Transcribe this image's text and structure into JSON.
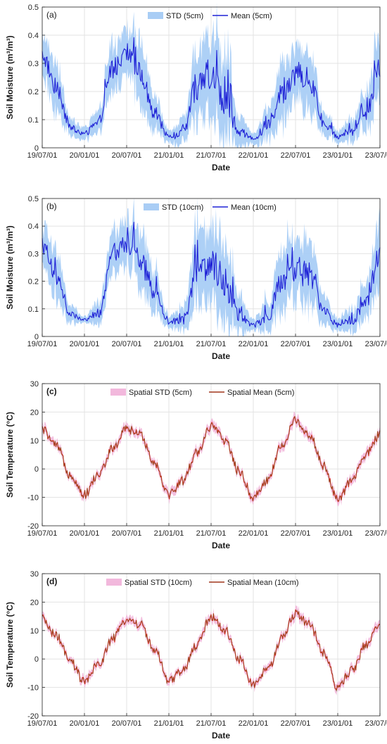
{
  "chart_data": [
    {
      "type": "area",
      "panel_label": "(a)",
      "xlabel": "Date",
      "ylabel": "Soil Moisture (m³/m³)",
      "x_ticks": [
        "19/07/01",
        "20/01/01",
        "20/07/01",
        "21/01/01",
        "21/07/01",
        "22/01/01",
        "22/07/01",
        "23/01/01",
        "23/07/01"
      ],
      "y_ticks": [
        "0",
        "0.1",
        "0.2",
        "0.3",
        "0.4",
        "0.5"
      ],
      "ylim": [
        0,
        0.5
      ],
      "grid": true,
      "legend_position": "top",
      "colors": {
        "band": "#a9cdf5",
        "line": "#1f22d6"
      },
      "series": [
        {
          "name": "STD (5cm)",
          "kind": "band"
        },
        {
          "name": "Mean (5cm)",
          "kind": "line"
        }
      ],
      "x": [
        "19/07/01",
        "19/09/01",
        "19/11/01",
        "20/01/01",
        "20/03/01",
        "20/05/01",
        "20/07/01",
        "20/09/01",
        "20/11/01",
        "21/01/01",
        "21/03/01",
        "21/05/01",
        "21/07/01",
        "21/09/01",
        "21/11/01",
        "22/01/01",
        "22/03/01",
        "22/05/01",
        "22/07/01",
        "22/09/01",
        "22/11/01",
        "23/01/01",
        "23/03/01",
        "23/05/01",
        "23/07/01"
      ],
      "mean": [
        0.33,
        0.22,
        0.07,
        0.05,
        0.09,
        0.28,
        0.34,
        0.26,
        0.12,
        0.04,
        0.05,
        0.22,
        0.27,
        0.18,
        0.06,
        0.03,
        0.08,
        0.2,
        0.26,
        0.24,
        0.09,
        0.04,
        0.06,
        0.12,
        0.3
      ],
      "std": [
        0.07,
        0.08,
        0.03,
        0.02,
        0.04,
        0.08,
        0.08,
        0.1,
        0.06,
        0.02,
        0.04,
        0.12,
        0.13,
        0.14,
        0.05,
        0.02,
        0.05,
        0.1,
        0.09,
        0.1,
        0.04,
        0.02,
        0.04,
        0.06,
        0.12
      ]
    },
    {
      "type": "area",
      "panel_label": "(b)",
      "xlabel": "Date",
      "ylabel": "Soil Moisture (m³/m³)",
      "x_ticks": [
        "19/07/01",
        "20/01/01",
        "20/07/01",
        "21/01/01",
        "21/07/01",
        "22/01/01",
        "22/07/01",
        "23/01/01",
        "23/07/01"
      ],
      "y_ticks": [
        "0",
        "0.1",
        "0.2",
        "0.3",
        "0.4",
        "0.5"
      ],
      "ylim": [
        0,
        0.5
      ],
      "grid": true,
      "legend_position": "top",
      "colors": {
        "band": "#a9cdf5",
        "line": "#1f22d6"
      },
      "series": [
        {
          "name": "STD (10cm)",
          "kind": "band"
        },
        {
          "name": "Mean (10cm)",
          "kind": "line"
        }
      ],
      "x": [
        "19/07/01",
        "19/09/01",
        "19/11/01",
        "20/01/01",
        "20/03/01",
        "20/05/01",
        "20/07/01",
        "20/09/01",
        "20/11/01",
        "21/01/01",
        "21/03/01",
        "21/05/01",
        "21/07/01",
        "21/09/01",
        "21/11/01",
        "22/01/01",
        "22/03/01",
        "22/05/01",
        "22/07/01",
        "22/09/01",
        "22/11/01",
        "23/01/01",
        "23/03/01",
        "23/05/01",
        "23/07/01"
      ],
      "mean": [
        0.33,
        0.22,
        0.08,
        0.06,
        0.08,
        0.29,
        0.34,
        0.27,
        0.16,
        0.05,
        0.06,
        0.23,
        0.27,
        0.19,
        0.08,
        0.04,
        0.07,
        0.19,
        0.24,
        0.22,
        0.1,
        0.04,
        0.06,
        0.12,
        0.29
      ],
      "std": [
        0.07,
        0.08,
        0.03,
        0.01,
        0.04,
        0.07,
        0.08,
        0.1,
        0.07,
        0.02,
        0.04,
        0.12,
        0.13,
        0.14,
        0.06,
        0.02,
        0.05,
        0.1,
        0.1,
        0.11,
        0.05,
        0.02,
        0.04,
        0.06,
        0.12
      ]
    },
    {
      "type": "area",
      "panel_label": "(c)",
      "xlabel": "Date",
      "ylabel": "Soil Temperature (°C)",
      "x_ticks": [
        "19/07/01",
        "20/01/01",
        "20/07/01",
        "21/01/01",
        "21/07/01",
        "22/01/01",
        "22/07/01",
        "23/01/01",
        "23/07/01"
      ],
      "y_ticks": [
        "-20",
        "-10",
        "0",
        "10",
        "20",
        "30"
      ],
      "ylim": [
        -20,
        30
      ],
      "grid": true,
      "legend_position": "top",
      "colors": {
        "band": "#f2b8dc",
        "line": "#d72a1e"
      },
      "series": [
        {
          "name": "Spatial STD (5cm)",
          "kind": "band"
        },
        {
          "name": "Spatial Mean (5cm)",
          "kind": "line"
        }
      ],
      "x": [
        "19/07/01",
        "19/09/01",
        "19/11/01",
        "20/01/01",
        "20/03/01",
        "20/05/01",
        "20/07/01",
        "20/09/01",
        "20/11/01",
        "21/01/01",
        "21/03/01",
        "21/05/01",
        "21/07/01",
        "21/09/01",
        "21/11/01",
        "22/01/01",
        "22/03/01",
        "22/05/01",
        "22/07/01",
        "22/09/01",
        "22/11/01",
        "23/01/01",
        "23/03/01",
        "23/05/01",
        "23/07/01"
      ],
      "mean": [
        14,
        8,
        -2,
        -9,
        -2,
        7,
        14,
        12,
        2,
        -9,
        -4,
        6,
        15,
        10,
        -1,
        -10,
        -4,
        8,
        17,
        12,
        1,
        -11,
        -4,
        5,
        12
      ],
      "std": [
        1.5,
        1.2,
        1.2,
        1.5,
        1.3,
        1.5,
        1.6,
        1.4,
        1.3,
        1.5,
        1.3,
        1.5,
        1.6,
        1.4,
        1.3,
        1.5,
        1.3,
        1.5,
        1.7,
        1.5,
        1.3,
        1.6,
        1.4,
        1.5,
        1.6
      ]
    },
    {
      "type": "area",
      "panel_label": "(d)",
      "xlabel": "Date",
      "ylabel": "Soil Temperature (°C)",
      "x_ticks": [
        "19/07/01",
        "20/01/01",
        "20/07/01",
        "21/01/01",
        "21/07/01",
        "22/01/01",
        "22/07/01",
        "23/01/01",
        "23/07/01"
      ],
      "y_ticks": [
        "-20",
        "-10",
        "0",
        "10",
        "20",
        "30"
      ],
      "ylim": [
        -20,
        30
      ],
      "grid": true,
      "legend_position": "top",
      "colors": {
        "band": "#f2b8dc",
        "line": "#d72a1e"
      },
      "series": [
        {
          "name": "Spatial STD (10cm)",
          "kind": "band"
        },
        {
          "name": "Spatial Mean (10cm)",
          "kind": "line"
        }
      ],
      "x": [
        "19/07/01",
        "19/09/01",
        "19/11/01",
        "20/01/01",
        "20/03/01",
        "20/05/01",
        "20/07/01",
        "20/09/01",
        "20/11/01",
        "21/01/01",
        "21/03/01",
        "21/05/01",
        "21/07/01",
        "21/09/01",
        "21/11/01",
        "22/01/01",
        "22/03/01",
        "22/05/01",
        "22/07/01",
        "22/09/01",
        "22/11/01",
        "23/01/01",
        "23/03/01",
        "23/05/01",
        "23/07/01"
      ],
      "mean": [
        14,
        8,
        -1,
        -8,
        -2,
        7,
        14,
        12,
        3,
        -8,
        -4,
        5,
        15,
        10,
        0,
        -9,
        -4,
        7,
        16,
        12,
        2,
        -10,
        -4,
        5,
        12
      ],
      "std": [
        1.4,
        1.1,
        1.1,
        1.4,
        1.2,
        1.4,
        1.5,
        1.3,
        1.2,
        1.4,
        1.2,
        1.4,
        1.5,
        1.3,
        1.2,
        1.4,
        1.2,
        1.4,
        1.6,
        1.4,
        1.2,
        1.5,
        1.3,
        1.4,
        1.5
      ]
    }
  ]
}
